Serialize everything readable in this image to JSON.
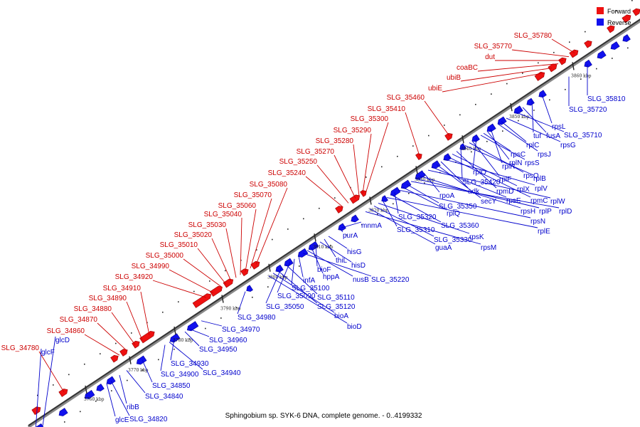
{
  "caption": "Sphingobium sp. SYK-6 DNA, complete genome. - 0..4199332",
  "legend": {
    "forward": {
      "label": "Forward",
      "color": "#ee1111"
    },
    "reverse": {
      "label": "Reverse",
      "color": "#1111ee"
    }
  },
  "ticks": [
    "3760 kbp",
    "3770 kbp",
    "3780 kbp",
    "3790 kbp",
    "3800 kbp",
    "3810 kbp",
    "3820 kbp",
    "3830 kbp",
    "3840 kbp",
    "3850 kbp",
    "3860 kbp"
  ],
  "forward_labels": [
    "SLG_35780",
    "SLG_35770",
    "dut",
    "coaBC",
    "ubiB",
    "ubiE",
    "SLG_35460",
    "SLG_35410",
    "SLG_35300",
    "SLG_35290",
    "SLG_35280",
    "SLG_35270",
    "SLG_35250",
    "SLG_35240",
    "SLG_35080",
    "SLG_35070",
    "SLG_35060",
    "SLG_35040",
    "SLG_35030",
    "SLG_35020",
    "SLG_35010",
    "SLG_35000",
    "SLG_34990",
    "SLG_34920",
    "SLG_34910",
    "SLG_34890",
    "SLG_34880",
    "SLG_34870",
    "SLG_34860",
    "SLG_34780"
  ],
  "reverse_labels": [
    "SLG_35810",
    "SLG_35720",
    "rpsL",
    "tuf",
    "fusA",
    "SLG_35710",
    "rpsG",
    "rplC",
    "rpsJ",
    "rplR",
    "rplN",
    "rpsC",
    "rpsS",
    "rplO",
    "rplF",
    "rpsQ",
    "rplB",
    "SLG_35420",
    "rpmD",
    "rplX",
    "rpmC",
    "rplV",
    "adk",
    "secY",
    "rpsE",
    "rplW",
    "rpoA",
    "rpsH",
    "rplP",
    "rplD",
    "SLG_35350",
    "rplQ",
    "rpsN",
    "SLG_35320",
    "SLG_35360",
    "rplE",
    "SLG_35310",
    "rpsK",
    "SLG_35330",
    "guaA",
    "rpsM",
    "mnmA",
    "purA",
    "hisG",
    "thiL",
    "hisD",
    "bioF",
    "hppA",
    "nusB",
    "SLG_35220",
    "infA",
    "SLG_35100",
    "SLG_35090",
    "SLG_35110",
    "SLG_35050",
    "SLG_35120",
    "bioA",
    "bioD",
    "SLG_34980",
    "SLG_34970",
    "SLG_34960",
    "SLG_34950",
    "SLG_34930",
    "SLG_34940",
    "SLG_34900",
    "SLG_34850",
    "SLG_34840",
    "ribB",
    "SLG_34820",
    "glcE",
    "glcD",
    "glcF"
  ]
}
